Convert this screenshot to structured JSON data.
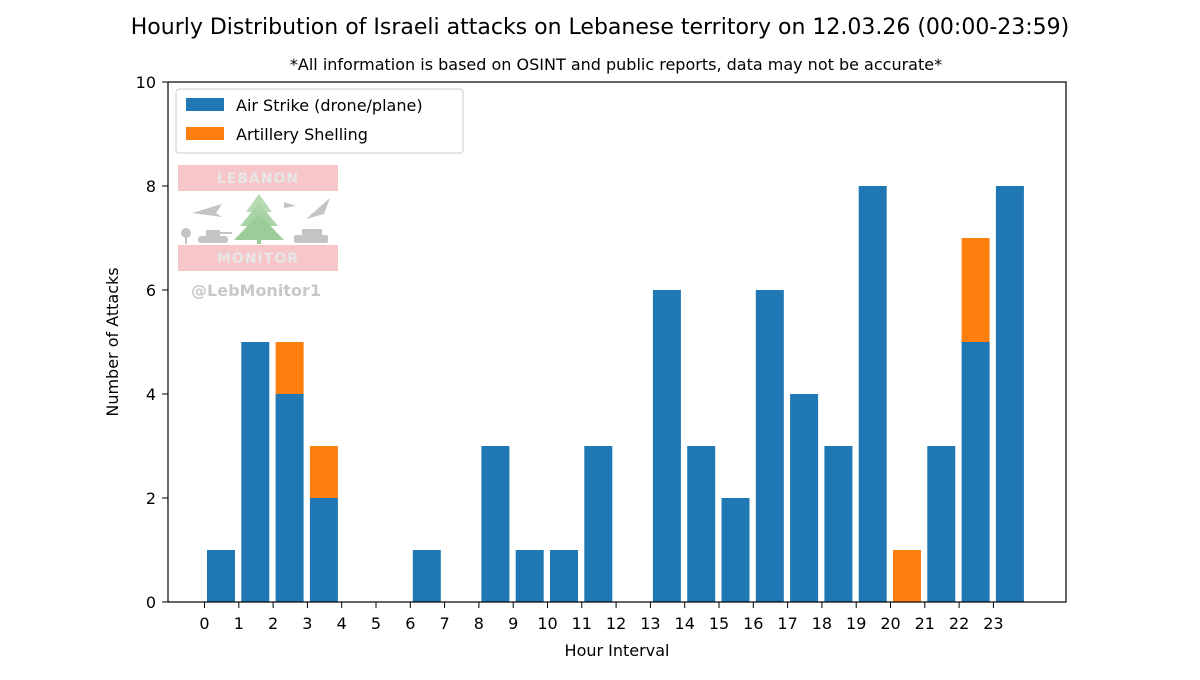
{
  "chart_data": {
    "type": "bar",
    "stacked": true,
    "title": "Hourly Distribution of Israeli attacks on Lebanese territory on 12.03.26 (00:00-23:59)",
    "subtitle": "*All information is based on OSINT and public reports, data may not be accurate*",
    "xlabel": "Hour Interval",
    "ylabel": "Number of Attacks",
    "ylim": [
      0,
      10
    ],
    "yticks": [
      0,
      2,
      4,
      6,
      8,
      10
    ],
    "xticks": [
      0,
      1,
      2,
      3,
      4,
      5,
      6,
      7,
      8,
      9,
      10,
      11,
      12,
      13,
      14,
      15,
      16,
      17,
      18,
      19,
      20,
      21,
      22,
      23
    ],
    "x": [
      0,
      1,
      2,
      3,
      4,
      5,
      6,
      7,
      8,
      9,
      10,
      11,
      12,
      13,
      14,
      15,
      16,
      17,
      18,
      19,
      20,
      21,
      22,
      23
    ],
    "grid": false,
    "legend_position": "top-left",
    "series": [
      {
        "name": "Air Strike (drone/plane)",
        "color": "#1f77b4",
        "values": [
          1,
          5,
          4,
          2,
          0,
          0,
          1,
          0,
          3,
          1,
          1,
          3,
          0,
          6,
          3,
          2,
          6,
          4,
          3,
          8,
          0,
          3,
          5,
          8
        ]
      },
      {
        "name": "Artillery Shelling",
        "color": "#ff7f0e",
        "values": [
          0,
          0,
          1,
          1,
          0,
          0,
          0,
          0,
          0,
          0,
          0,
          0,
          0,
          0,
          0,
          0,
          0,
          0,
          0,
          0,
          1,
          0,
          2,
          0
        ]
      }
    ]
  },
  "watermark": {
    "top_text": "LEBANON",
    "bottom_text": "MONITOR",
    "handle": "@LebMonitor1"
  }
}
